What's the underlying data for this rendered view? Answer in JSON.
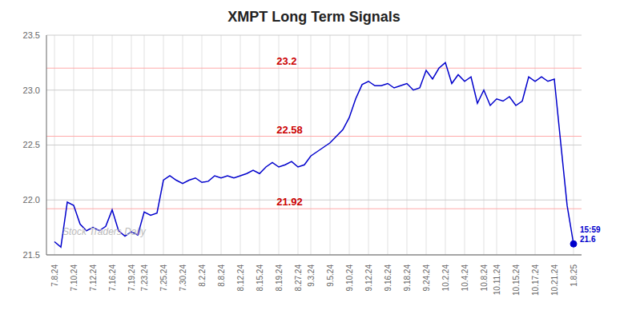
{
  "chart_data": {
    "type": "line",
    "title": "XMPT Long Term Signals",
    "color": "#0000cc",
    "grid": true,
    "categories": [
      "7.8.24",
      null,
      null,
      "7.10.24",
      null,
      null,
      "7.12.24",
      null,
      null,
      "7.16.24",
      null,
      null,
      "7.19.24",
      null,
      "7.23.24",
      null,
      null,
      "7.25.24",
      null,
      null,
      "7.30.24",
      null,
      null,
      "8.2.24",
      null,
      null,
      "8.8.24",
      null,
      null,
      "8.12.24",
      null,
      null,
      "8.15.24",
      null,
      null,
      "8.19.24",
      null,
      null,
      "8.27.24",
      null,
      "9.3.24",
      null,
      null,
      "9.5.24",
      null,
      null,
      "9.10.24",
      null,
      null,
      "9.12.24",
      null,
      null,
      "9.16.24",
      null,
      null,
      "9.18.24",
      null,
      null,
      "9.24.24",
      null,
      null,
      "10.2.24",
      null,
      null,
      "10.4.24",
      null,
      null,
      "10.8.24",
      null,
      "10.11.24",
      null,
      null,
      "10.15.24",
      null,
      null,
      "10.17.24",
      null,
      null,
      "10.21.24",
      null,
      null,
      "1.8.25"
    ],
    "values": [
      21.62,
      21.57,
      21.98,
      21.95,
      21.78,
      21.72,
      21.75,
      21.72,
      21.76,
      21.91,
      21.72,
      21.67,
      21.71,
      21.68,
      21.89,
      21.86,
      21.88,
      22.18,
      22.22,
      22.18,
      22.15,
      22.18,
      22.2,
      22.16,
      22.17,
      22.22,
      22.2,
      22.22,
      22.2,
      22.22,
      22.24,
      22.27,
      22.24,
      22.3,
      22.34,
      22.3,
      22.32,
      22.35,
      22.3,
      22.32,
      22.4,
      22.44,
      22.48,
      22.52,
      22.58,
      22.64,
      22.75,
      22.92,
      23.05,
      23.08,
      23.04,
      23.04,
      23.06,
      23.02,
      23.04,
      23.06,
      23.0,
      23.02,
      23.18,
      23.1,
      23.2,
      23.25,
      23.06,
      23.14,
      23.08,
      23.12,
      22.88,
      23.0,
      22.86,
      22.92,
      22.9,
      22.94,
      22.86,
      22.9,
      23.12,
      23.08,
      23.12,
      23.08,
      23.1,
      22.52,
      21.95,
      21.6
    ],
    "ylim": [
      21.5,
      23.5
    ],
    "yticks": [
      21.5,
      {
        "value": 22,
        "label": "22.0"
      },
      22.5,
      {
        "value": 23,
        "label": "23.0"
      },
      23.5
    ],
    "reference_lines": [
      {
        "value": 23.2,
        "label": "23.2",
        "color": "#ffaaaa",
        "label_color": "#cc0000"
      },
      {
        "value": 22.58,
        "label": "22.58",
        "color": "#ffaaaa",
        "label_color": "#cc0000"
      },
      {
        "value": 21.92,
        "label": "21.92",
        "color": "#ffaaaa",
        "label_color": "#cc0000"
      }
    ],
    "annotations": [
      {
        "text": "Stock Traders Daily",
        "color": "#bbbbbb"
      },
      {
        "text": "15:59\n21.6",
        "color": "#0000cc"
      }
    ]
  }
}
